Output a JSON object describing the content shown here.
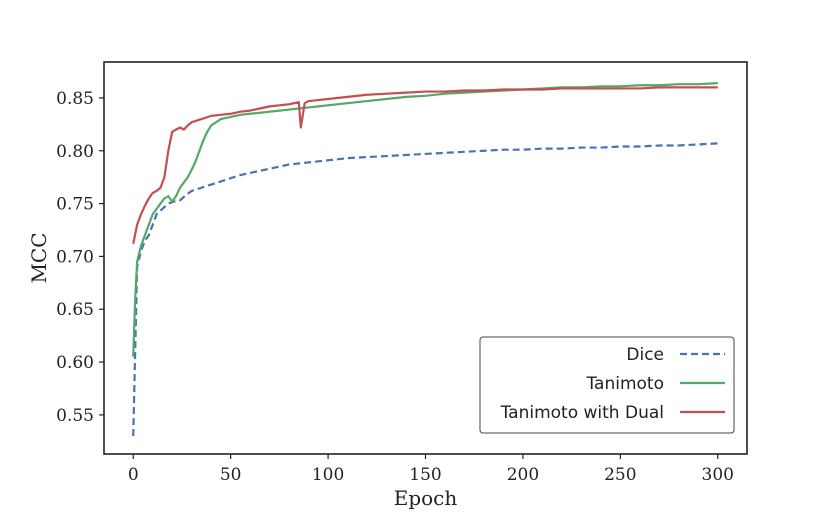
{
  "chart_data": {
    "type": "line",
    "xlabel": "Epoch",
    "ylabel": "MCC",
    "xlim": [
      -15,
      315
    ],
    "ylim": [
      0.513,
      0.884
    ],
    "xticks": [
      0,
      50,
      100,
      150,
      200,
      250,
      300
    ],
    "yticks": [
      0.55,
      0.6,
      0.65,
      0.7,
      0.75,
      0.8,
      0.85
    ],
    "ytick_labels": [
      "0.55",
      "0.60",
      "0.65",
      "0.70",
      "0.75",
      "0.80",
      "0.85"
    ],
    "grid": false,
    "legend_position": "lower-right",
    "series": [
      {
        "name": "Dice",
        "color": "#4c72b0",
        "dash": "dashed",
        "points": [
          [
            0,
            0.53
          ],
          [
            1,
            0.61
          ],
          [
            2,
            0.69
          ],
          [
            4,
            0.705
          ],
          [
            6,
            0.715
          ],
          [
            8,
            0.72
          ],
          [
            10,
            0.73
          ],
          [
            12,
            0.74
          ],
          [
            15,
            0.745
          ],
          [
            18,
            0.75
          ],
          [
            21,
            0.752
          ],
          [
            24,
            0.753
          ],
          [
            27,
            0.758
          ],
          [
            30,
            0.762
          ],
          [
            35,
            0.765
          ],
          [
            40,
            0.768
          ],
          [
            45,
            0.771
          ],
          [
            50,
            0.774
          ],
          [
            55,
            0.777
          ],
          [
            60,
            0.779
          ],
          [
            65,
            0.781
          ],
          [
            70,
            0.783
          ],
          [
            75,
            0.785
          ],
          [
            80,
            0.787
          ],
          [
            85,
            0.788
          ],
          [
            90,
            0.789
          ],
          [
            95,
            0.79
          ],
          [
            100,
            0.791
          ],
          [
            110,
            0.793
          ],
          [
            120,
            0.794
          ],
          [
            130,
            0.795
          ],
          [
            140,
            0.796
          ],
          [
            150,
            0.797
          ],
          [
            160,
            0.798
          ],
          [
            170,
            0.799
          ],
          [
            180,
            0.8
          ],
          [
            190,
            0.801
          ],
          [
            200,
            0.801
          ],
          [
            210,
            0.802
          ],
          [
            220,
            0.802
          ],
          [
            230,
            0.803
          ],
          [
            240,
            0.803
          ],
          [
            250,
            0.804
          ],
          [
            260,
            0.804
          ],
          [
            270,
            0.805
          ],
          [
            280,
            0.805
          ],
          [
            290,
            0.806
          ],
          [
            300,
            0.807
          ]
        ]
      },
      {
        "name": "Tanimoto",
        "color": "#55a868",
        "dash": "solid",
        "points": [
          [
            0,
            0.605
          ],
          [
            1,
            0.66
          ],
          [
            2,
            0.695
          ],
          [
            4,
            0.71
          ],
          [
            6,
            0.72
          ],
          [
            8,
            0.73
          ],
          [
            10,
            0.74
          ],
          [
            12,
            0.745
          ],
          [
            14,
            0.75
          ],
          [
            16,
            0.755
          ],
          [
            18,
            0.757
          ],
          [
            20,
            0.752
          ],
          [
            22,
            0.757
          ],
          [
            24,
            0.765
          ],
          [
            26,
            0.77
          ],
          [
            28,
            0.775
          ],
          [
            30,
            0.782
          ],
          [
            32,
            0.79
          ],
          [
            34,
            0.8
          ],
          [
            36,
            0.81
          ],
          [
            38,
            0.818
          ],
          [
            40,
            0.824
          ],
          [
            45,
            0.83
          ],
          [
            50,
            0.832
          ],
          [
            55,
            0.834
          ],
          [
            60,
            0.835
          ],
          [
            65,
            0.836
          ],
          [
            70,
            0.837
          ],
          [
            75,
            0.838
          ],
          [
            80,
            0.839
          ],
          [
            85,
            0.84
          ],
          [
            90,
            0.841
          ],
          [
            95,
            0.842
          ],
          [
            100,
            0.843
          ],
          [
            110,
            0.845
          ],
          [
            120,
            0.847
          ],
          [
            130,
            0.849
          ],
          [
            140,
            0.851
          ],
          [
            150,
            0.852
          ],
          [
            160,
            0.854
          ],
          [
            170,
            0.855
          ],
          [
            180,
            0.856
          ],
          [
            190,
            0.857
          ],
          [
            200,
            0.858
          ],
          [
            210,
            0.859
          ],
          [
            220,
            0.86
          ],
          [
            230,
            0.86
          ],
          [
            240,
            0.861
          ],
          [
            250,
            0.861
          ],
          [
            260,
            0.862
          ],
          [
            270,
            0.862
          ],
          [
            280,
            0.863
          ],
          [
            290,
            0.863
          ],
          [
            300,
            0.864
          ]
        ]
      },
      {
        "name": "Tanimoto with Dual",
        "color": "#c44e52",
        "dash": "solid",
        "points": [
          [
            0,
            0.712
          ],
          [
            2,
            0.73
          ],
          [
            4,
            0.74
          ],
          [
            6,
            0.748
          ],
          [
            8,
            0.755
          ],
          [
            10,
            0.76
          ],
          [
            12,
            0.762
          ],
          [
            14,
            0.765
          ],
          [
            16,
            0.775
          ],
          [
            18,
            0.8
          ],
          [
            20,
            0.818
          ],
          [
            22,
            0.82
          ],
          [
            24,
            0.822
          ],
          [
            26,
            0.82
          ],
          [
            28,
            0.824
          ],
          [
            30,
            0.827
          ],
          [
            35,
            0.83
          ],
          [
            40,
            0.833
          ],
          [
            45,
            0.834
          ],
          [
            50,
            0.835
          ],
          [
            55,
            0.837
          ],
          [
            60,
            0.838
          ],
          [
            65,
            0.84
          ],
          [
            70,
            0.842
          ],
          [
            75,
            0.843
          ],
          [
            80,
            0.844
          ],
          [
            85,
            0.846
          ],
          [
            86,
            0.822
          ],
          [
            88,
            0.845
          ],
          [
            90,
            0.847
          ],
          [
            95,
            0.848
          ],
          [
            100,
            0.849
          ],
          [
            110,
            0.851
          ],
          [
            120,
            0.853
          ],
          [
            130,
            0.854
          ],
          [
            140,
            0.855
          ],
          [
            150,
            0.856
          ],
          [
            160,
            0.856
          ],
          [
            170,
            0.857
          ],
          [
            180,
            0.857
          ],
          [
            190,
            0.858
          ],
          [
            200,
            0.858
          ],
          [
            210,
            0.858
          ],
          [
            220,
            0.859
          ],
          [
            230,
            0.859
          ],
          [
            240,
            0.859
          ],
          [
            250,
            0.859
          ],
          [
            260,
            0.859
          ],
          [
            270,
            0.86
          ],
          [
            280,
            0.86
          ],
          [
            290,
            0.86
          ],
          [
            300,
            0.86
          ]
        ]
      }
    ]
  }
}
